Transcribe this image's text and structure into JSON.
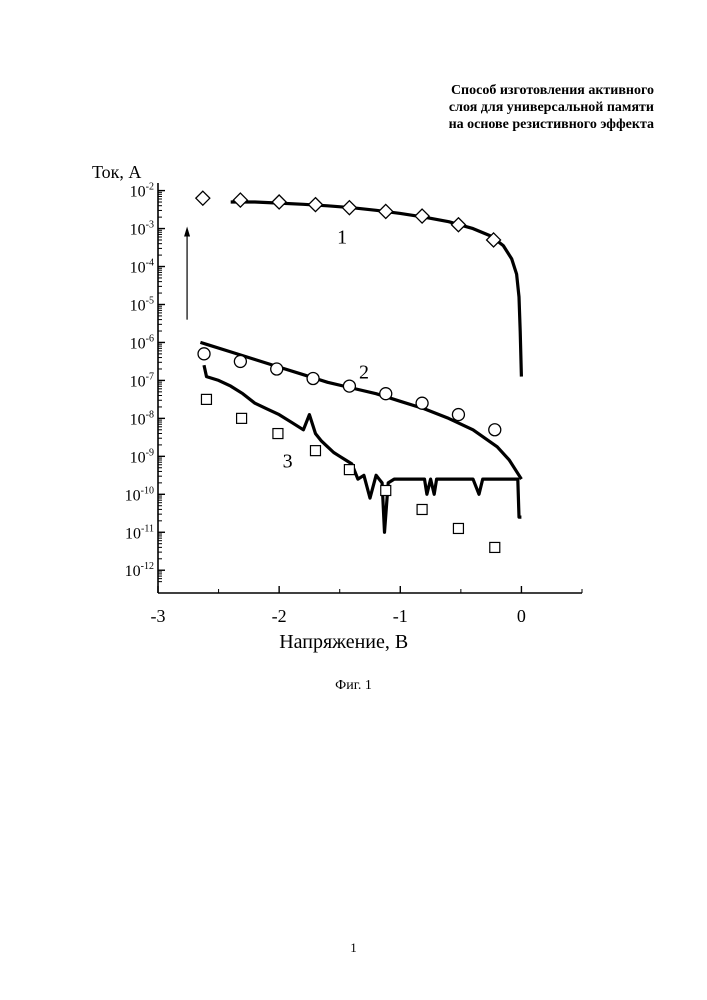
{
  "header": {
    "title_lines": [
      "Способ изготовления активного",
      "слоя для универсальной памяти",
      "на основе резистивного эффекта"
    ]
  },
  "chart_data": {
    "type": "line",
    "ylabel": "Ток, А",
    "xlabel": "Напряжение, В",
    "xlim": [
      -3,
      0.5
    ],
    "y_log": true,
    "ylim_exp": [
      -12.6,
      -1.8
    ],
    "x_ticks": [
      {
        "value": -3,
        "label": "-3"
      },
      {
        "value": -2,
        "label": "-2"
      },
      {
        "value": -1,
        "label": "-1"
      },
      {
        "value": 0,
        "label": "0"
      }
    ],
    "y_ticks": [
      {
        "exp": -2,
        "base": "10",
        "power": "-2"
      },
      {
        "exp": -3,
        "base": "10",
        "power": "-3"
      },
      {
        "exp": -4,
        "base": "10",
        "power": "-4"
      },
      {
        "exp": -5,
        "base": "10",
        "power": "-5"
      },
      {
        "exp": -6,
        "base": "10",
        "power": "-6"
      },
      {
        "exp": -7,
        "base": "10",
        "power": "-7"
      },
      {
        "exp": -8,
        "base": "10",
        "power": "-8"
      },
      {
        "exp": -9,
        "base": "10",
        "power": "-9"
      },
      {
        "exp": -10,
        "base": "10",
        "power": "-10"
      },
      {
        "exp": -11,
        "base": "10",
        "power": "-11"
      },
      {
        "exp": -12,
        "base": "10",
        "power": "-12"
      }
    ],
    "series": [
      {
        "name": "1",
        "marker": "diamond",
        "line": {
          "x": [
            -2.4,
            -2.2,
            -2.0,
            -1.8,
            -1.6,
            -1.4,
            -1.2,
            -1.0,
            -0.8,
            -0.6,
            -0.4,
            -0.25,
            -0.15,
            -0.08,
            -0.04,
            -0.02,
            -0.01,
            0.0
          ],
          "y_exp": [
            -2.3,
            -2.3,
            -2.33,
            -2.36,
            -2.4,
            -2.45,
            -2.52,
            -2.6,
            -2.7,
            -2.82,
            -3.0,
            -3.2,
            -3.45,
            -3.8,
            -4.2,
            -4.8,
            -5.7,
            -6.9
          ]
        },
        "markers": {
          "x": [
            -2.63,
            -2.32,
            -2.0,
            -1.7,
            -1.42,
            -1.12,
            -0.82,
            -0.52,
            -0.23
          ],
          "y_exp": [
            -2.2,
            -2.25,
            -2.3,
            -2.37,
            -2.45,
            -2.55,
            -2.67,
            -2.9,
            -3.3
          ]
        }
      },
      {
        "name": "2",
        "marker": "circle",
        "line": {
          "x": [
            -2.65,
            -2.6,
            -2.4,
            -2.2,
            -2.0,
            -1.8,
            -1.6,
            -1.4,
            -1.2,
            -1.0,
            -0.8,
            -0.6,
            -0.4,
            -0.2,
            -0.1,
            -0.02,
            0.0
          ],
          "y_exp": [
            -6.0,
            -6.05,
            -6.25,
            -6.45,
            -6.65,
            -6.85,
            -7.05,
            -7.2,
            -7.35,
            -7.55,
            -7.75,
            -8.0,
            -8.3,
            -8.75,
            -9.1,
            -9.5,
            -9.6
          ]
        },
        "markers": {
          "x": [
            -2.62,
            -2.32,
            -2.02,
            -1.72,
            -1.42,
            -1.12,
            -0.82,
            -0.52,
            -0.22
          ],
          "y_exp": [
            -6.3,
            -6.5,
            -6.7,
            -6.95,
            -7.15,
            -7.35,
            -7.6,
            -7.9,
            -8.3
          ]
        }
      },
      {
        "name": "3",
        "marker": "square",
        "line": {
          "x": [
            -2.62,
            -2.6,
            -2.5,
            -2.4,
            -2.3,
            -2.2,
            -2.1,
            -2.0,
            -1.9,
            -1.8,
            -1.75,
            -1.7,
            -1.65,
            -1.6,
            -1.55,
            -1.5,
            -1.45,
            -1.4,
            -1.35,
            -1.3,
            -1.25,
            -1.2,
            -1.15,
            -1.13,
            -1.1,
            -1.05,
            -1.0,
            -0.95,
            -0.9,
            -0.85,
            -0.8,
            -0.78,
            -0.75,
            -0.72,
            -0.7,
            -0.6,
            -0.5,
            -0.4,
            -0.35,
            -0.32,
            -0.3,
            -0.2,
            -0.1,
            -0.03,
            -0.02,
            0.0
          ],
          "y_exp": [
            -6.6,
            -6.9,
            -7.0,
            -7.15,
            -7.35,
            -7.6,
            -7.75,
            -7.9,
            -8.1,
            -8.3,
            -7.9,
            -8.4,
            -8.6,
            -8.75,
            -8.9,
            -9.0,
            -9.1,
            -9.2,
            -9.6,
            -9.5,
            -10.1,
            -9.5,
            -9.7,
            -11.0,
            -9.7,
            -9.6,
            -9.6,
            -9.6,
            -9.6,
            -9.6,
            -9.6,
            -10.0,
            -9.6,
            -10.0,
            -9.6,
            -9.6,
            -9.6,
            -9.6,
            -10.0,
            -9.6,
            -9.6,
            -9.6,
            -9.6,
            -9.6,
            -10.6,
            -10.6
          ]
        },
        "markers": {
          "x": [
            -2.6,
            -2.31,
            -2.01,
            -1.7,
            -1.42,
            -1.12,
            -0.82,
            -0.52,
            -0.22
          ],
          "y_exp": [
            -7.5,
            -8.0,
            -8.4,
            -8.85,
            -9.35,
            -9.9,
            -10.4,
            -10.9,
            -11.4
          ]
        }
      }
    ],
    "annotations": [
      {
        "type": "arrow",
        "direction": "up",
        "x": -2.76,
        "y_exp_from": -5.4,
        "y_exp_to": -3.0
      }
    ]
  },
  "caption": "Фиг. 1",
  "page_number": "1"
}
